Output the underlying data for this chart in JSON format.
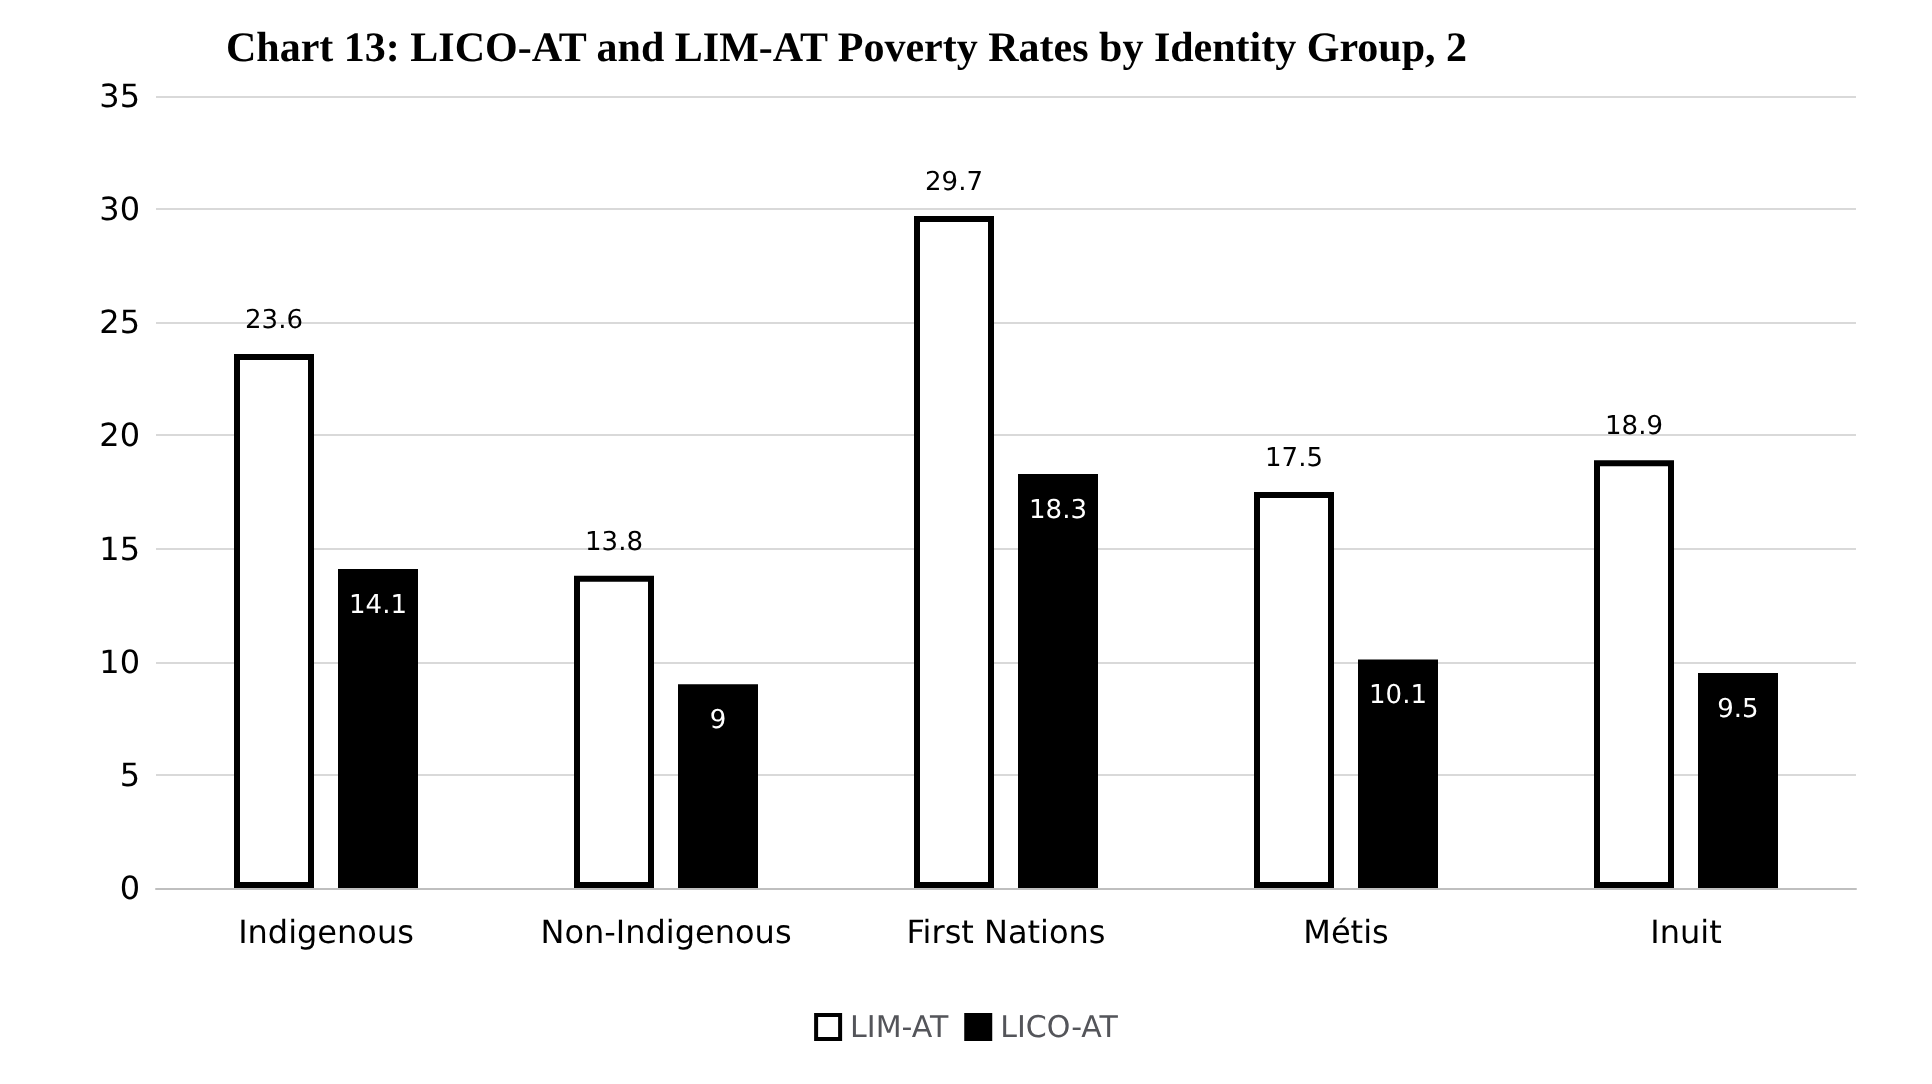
{
  "chart_data": {
    "type": "bar",
    "title": "Chart 13: LICO-AT and LIM-AT Poverty Rates by Identity Group, 2",
    "categories": [
      "Indigenous",
      "Non-Indigenous",
      "First Nations",
      "Métis",
      "Inuit"
    ],
    "series": [
      {
        "name": "LIM-AT",
        "color": "#ffffff",
        "values": [
          23.6,
          13.8,
          29.7,
          17.5,
          18.9
        ]
      },
      {
        "name": "LICO-AT",
        "color": "#000000",
        "values": [
          14.1,
          9,
          18.3,
          10.1,
          9.5
        ]
      }
    ],
    "ylim": [
      0,
      35
    ],
    "yticks": [
      0,
      5,
      10,
      15,
      20,
      25,
      30,
      35
    ],
    "grid": "y",
    "legend": "bottom",
    "data_labels": true
  }
}
